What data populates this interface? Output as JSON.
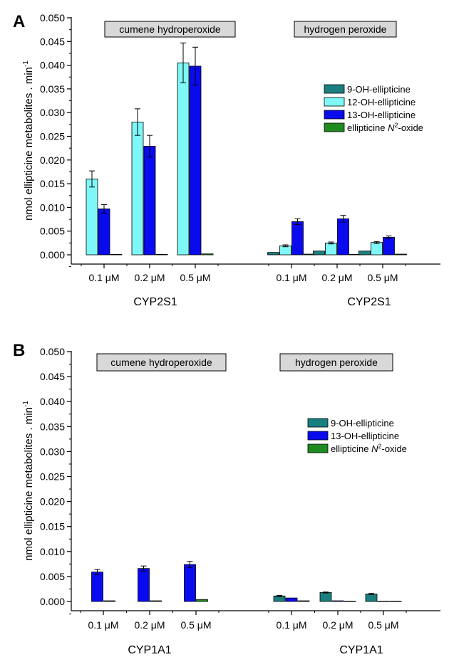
{
  "colors": {
    "9-OH-ellipticine": "#1a7f7f",
    "12-OH-ellipticine": "#7ff7f7",
    "13-OH-ellipticine": "#0a0aee",
    "ellipticine N2-oxide": "#1f8a1f",
    "label_box_fill": "#d8d8d8"
  },
  "chart_data": [
    {
      "type": "bar",
      "panel_label": "A",
      "ylabel": "nmol ellipticine metabolites . min",
      "ylabel_sup": "-1",
      "ylim": [
        0,
        0.05
      ],
      "yticks": [
        "0.000",
        "0.005",
        "0.010",
        "0.015",
        "0.020",
        "0.025",
        "0.030",
        "0.035",
        "0.040",
        "0.045",
        "0.050"
      ],
      "groups": [
        {
          "label": "cumene hydroperoxide",
          "xlabel": "CYP2S1",
          "categories": [
            "0.1 μM",
            "0.2 μM",
            "0.5 μM"
          ],
          "series": [
            {
              "name": "12-OH-ellipticine",
              "values": [
                0.016,
                0.028,
                0.0405
              ],
              "errors": [
                0.0017,
                0.0028,
                0.0042
              ]
            },
            {
              "name": "13-OH-ellipticine",
              "values": [
                0.0097,
                0.0229,
                0.0398
              ],
              "errors": [
                0.0009,
                0.0023,
                0.004
              ]
            },
            {
              "name": "ellipticine N2-oxide",
              "values": [
                0,
                0,
                0.0002
              ],
              "errors": [
                0,
                0,
                0
              ]
            }
          ]
        },
        {
          "label": "hydrogen peroxide",
          "xlabel": "CYP2S1",
          "categories": [
            "0.1 μM",
            "0.2 μM",
            "0.5 μM"
          ],
          "series": [
            {
              "name": "9-OH-ellipticine",
              "values": [
                0.0005,
                0.0008,
                0.0008
              ],
              "errors": [
                0,
                0,
                0
              ]
            },
            {
              "name": "12-OH-ellipticine",
              "values": [
                0.0019,
                0.0025,
                0.0026
              ],
              "errors": [
                0.0002,
                0.0002,
                0.0002
              ]
            },
            {
              "name": "13-OH-ellipticine",
              "values": [
                0.007,
                0.0076,
                0.0037
              ],
              "errors": [
                0.0006,
                0.0007,
                0.0003
              ]
            },
            {
              "name": "ellipticine N2-oxide",
              "values": [
                0.0001,
                0,
                0.0001
              ],
              "errors": [
                0,
                0,
                0
              ]
            }
          ]
        }
      ],
      "legend": [
        "9-OH-ellipticine",
        "12-OH-ellipticine",
        "13-OH-ellipticine",
        "ellipticine N2-oxide"
      ]
    },
    {
      "type": "bar",
      "panel_label": "B",
      "ylabel": "nmol ellipticine metabolites . min",
      "ylabel_sup": "-1",
      "ylim": [
        0,
        0.05
      ],
      "yticks": [
        "0.000",
        "0.005",
        "0.010",
        "0.015",
        "0.020",
        "0.025",
        "0.030",
        "0.035",
        "0.040",
        "0.045",
        "0.050"
      ],
      "groups": [
        {
          "label": "cumene hydroperoxide",
          "xlabel": "CYP1A1",
          "categories": [
            "0.1 μM",
            "0.2 μM",
            "0.5 μM"
          ],
          "series": [
            {
              "name": "13-OH-ellipticine",
              "values": [
                0.0059,
                0.0066,
                0.0074
              ],
              "errors": [
                0.0005,
                0.0005,
                0.0006
              ]
            },
            {
              "name": "ellipticine N2-oxide",
              "values": [
                0.0001,
                0.0001,
                0.0004
              ],
              "errors": [
                0,
                0,
                0
              ]
            }
          ]
        },
        {
          "label": "hydrogen peroxide",
          "xlabel": "CYP1A1",
          "categories": [
            "0.1 μM",
            "0.2 μM",
            "0.5 μM"
          ],
          "series": [
            {
              "name": "9-OH-ellipticine",
              "values": [
                0.0011,
                0.0018,
                0.0015
              ],
              "errors": [
                0.0001,
                0.0001,
                0.0001
              ]
            },
            {
              "name": "13-OH-ellipticine",
              "values": [
                0.0007,
                0.0001,
                0
              ],
              "errors": [
                0,
                0,
                0
              ]
            },
            {
              "name": "ellipticine N2-oxide",
              "values": [
                0.0001,
                0,
                0
              ],
              "errors": [
                0,
                0,
                0
              ]
            }
          ]
        }
      ],
      "legend": [
        "9-OH-ellipticine",
        "13-OH-ellipticine",
        "ellipticine N2-oxide"
      ]
    }
  ]
}
